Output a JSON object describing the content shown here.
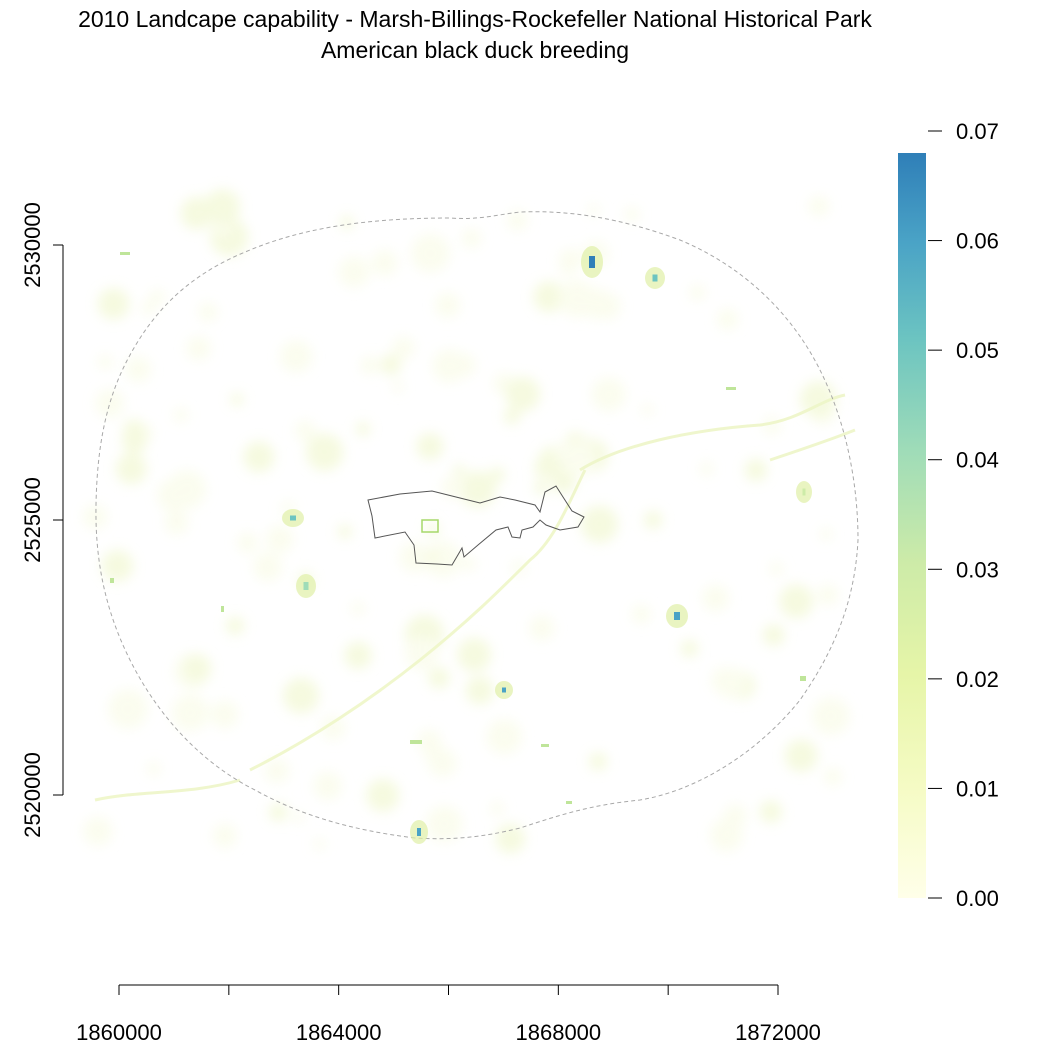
{
  "title": {
    "line1": "2010 Landcape capability - Marsh-Billings-Rockefeller National Historical Park",
    "line2": "American black duck breeding"
  },
  "axes": {
    "x": {
      "ticks": [
        1860000,
        1862000,
        1864000,
        1866000,
        1868000,
        1870000,
        1872000
      ],
      "labels": [
        "1860000",
        "",
        "1864000",
        "",
        "1868000",
        "",
        "1872000"
      ]
    },
    "y": {
      "ticks": [
        2520000,
        2525000,
        2530000
      ],
      "labels": [
        "2520000",
        "2525000",
        "2530000"
      ]
    }
  },
  "legend": {
    "ticks": [
      0.0,
      0.01,
      0.02,
      0.03,
      0.04,
      0.05,
      0.06,
      0.07
    ],
    "labels": [
      "0.00",
      "0.01",
      "0.02",
      "0.03",
      "0.04",
      "0.05",
      "0.06",
      "0.07"
    ],
    "range": [
      0.0,
      0.068
    ],
    "colors": [
      "#ffffe9",
      "#f5fbc4",
      "#e6f5a8",
      "#cdeba8",
      "#9fdcb8",
      "#6cc4c1",
      "#4aa3c6",
      "#2f7fb8"
    ]
  },
  "hotspots": [
    {
      "name": "hotspot-north-1",
      "value": 0.065
    },
    {
      "name": "hotspot-north-2",
      "value": 0.045
    },
    {
      "name": "hotspot-east-1",
      "value": 0.06
    },
    {
      "name": "hotspot-west-1",
      "value": 0.045
    },
    {
      "name": "hotspot-west-2",
      "value": 0.035
    },
    {
      "name": "hotspot-south-1",
      "value": 0.055
    },
    {
      "name": "hotspot-south-2",
      "value": 0.06
    },
    {
      "name": "hotspot-center",
      "value": 0.03
    }
  ]
}
